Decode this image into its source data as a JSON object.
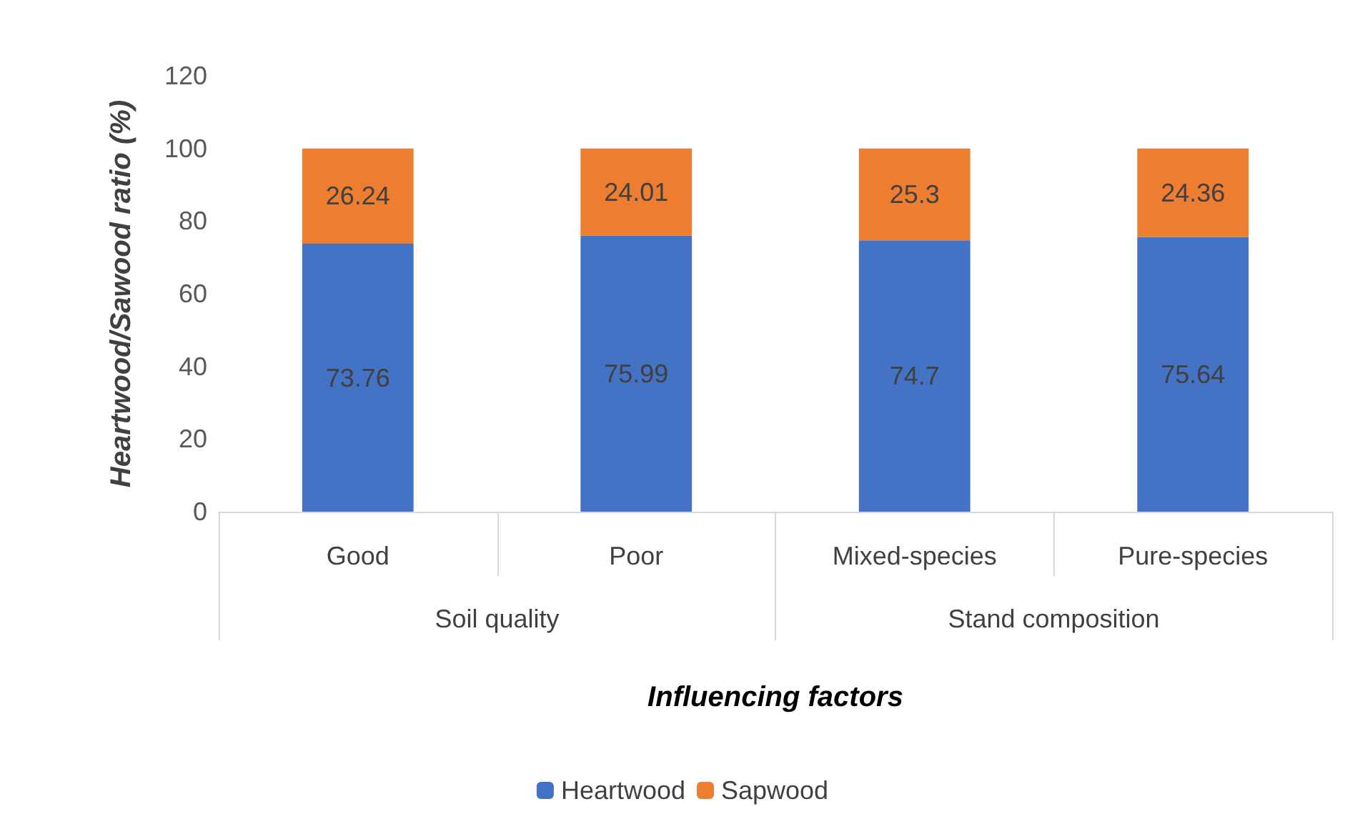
{
  "chart_data": {
    "type": "bar",
    "stacked": true,
    "categories": [
      "Good",
      "Poor",
      "Mixed-species",
      "Pure-species"
    ],
    "series": [
      {
        "name": "Heartwood",
        "color": "#4472c4",
        "values": [
          73.76,
          75.99,
          74.7,
          75.64
        ]
      },
      {
        "name": "Sapwood",
        "color": "#ed7d31",
        "values": [
          26.24,
          24.01,
          25.3,
          24.36
        ]
      }
    ],
    "ylim": [
      0,
      120
    ],
    "yticks": [
      0,
      20,
      40,
      60,
      80,
      100,
      120
    ],
    "ylabel": "Heartwood/Sawood ratio (%)",
    "xlabel": "Influencing factors",
    "annotations": [
      "Soil quality",
      "Stand composition"
    ],
    "data_labels": true,
    "grid": false,
    "legend": "bottom"
  }
}
